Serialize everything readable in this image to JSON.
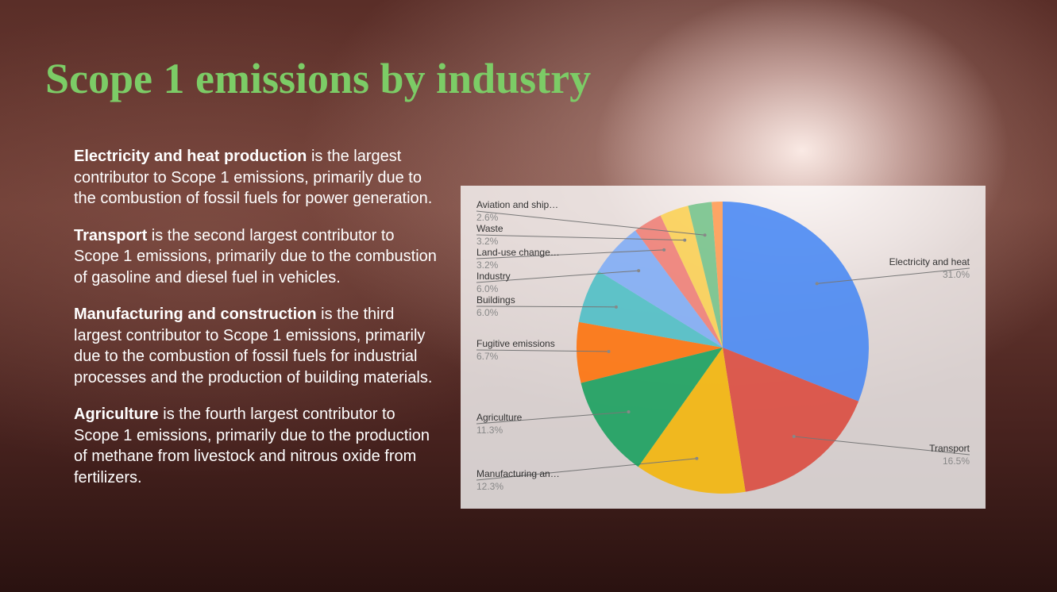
{
  "title": "Scope 1 emissions by industry",
  "paragraphs": [
    {
      "bold": "Electricity and heat production",
      "text": " is the largest contributor to Scope 1 emissions, primarily due to the combustion of fossil fuels for power generation."
    },
    {
      "bold": "Transport",
      "text": " is the second largest contributor to Scope 1 emissions, primarily due to the combustion of gasoline and diesel fuel in vehicles."
    },
    {
      "bold": "Manufacturing and construction",
      "text": " is the third largest contributor to Scope 1 emissions, primarily due to the combustion of fossil fuels for industrial processes and the production of building materials."
    },
    {
      "bold": "Agriculture",
      "text": " is the fourth largest contributor to Scope 1 emissions, primarily due to the production of methane from livestock and nitrous oxide from fertilizers."
    }
  ],
  "chart_data": {
    "type": "pie",
    "categories": [
      "Electricity and heat",
      "Transport",
      "Manufacturing an…",
      "Agriculture",
      "Fugitive emissions",
      "Buildings",
      "Industry",
      "Land-use change…",
      "Waste",
      "Aviation and ship…",
      null
    ],
    "values": [
      31.0,
      16.5,
      12.3,
      11.3,
      6.7,
      6.0,
      6.0,
      3.2,
      3.2,
      2.6,
      1.2
    ],
    "value_labels": [
      "31.0%",
      "16.5%",
      "12.3%",
      "11.3%",
      "6.7%",
      "6.0%",
      "6.0%",
      "3.2%",
      "3.2%",
      "2.6%",
      null
    ],
    "colors": [
      "#4285f4",
      "#db4437",
      "#f4b400",
      "#0f9d58",
      "#ff6d01",
      "#46bdc6",
      "#7baaf7",
      "#f07b72",
      "#fcd04f",
      "#71c287",
      "#ff994d"
    ]
  }
}
